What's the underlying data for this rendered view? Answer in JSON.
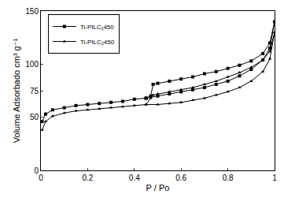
{
  "chart_data": {
    "type": "line",
    "x_label": "P / Po",
    "y_label": "Volume Adsorbado cm³ g⁻¹",
    "xlim": [
      0,
      1
    ],
    "ylim": [
      0,
      150
    ],
    "xticks": [
      0,
      0.2,
      0.4,
      0.6,
      0.8,
      1
    ],
    "yticks": [
      0,
      50,
      75,
      100,
      150
    ],
    "legend": "top-left",
    "grid": false,
    "series": [
      {
        "name": "Ti-PILC₁450",
        "color": "#000000",
        "marker": "square",
        "x": [
          0.005,
          0.02,
          0.05,
          0.1,
          0.15,
          0.2,
          0.25,
          0.3,
          0.35,
          0.4,
          0.45,
          0.5,
          0.55,
          0.6,
          0.65,
          0.7,
          0.75,
          0.8,
          0.85,
          0.9,
          0.95,
          0.98,
          1.0,
          0.98,
          0.95,
          0.9,
          0.85,
          0.8,
          0.75,
          0.7,
          0.65,
          0.6,
          0.55,
          0.5,
          0.48,
          0.47,
          0.45
        ],
        "values": [
          46,
          53,
          57,
          59,
          61,
          62,
          63,
          64,
          65,
          67,
          68,
          70,
          72,
          74,
          76,
          78,
          81,
          84,
          89,
          95,
          104,
          115,
          140,
          120,
          110,
          103,
          99,
          96,
          93,
          91,
          88,
          86,
          84,
          82,
          81,
          70,
          68
        ]
      },
      {
        "name": "Ti-PILC₂450",
        "color": "#000000",
        "marker": "triangle",
        "x": [
          0.005,
          0.02,
          0.05,
          0.1,
          0.15,
          0.2,
          0.25,
          0.3,
          0.35,
          0.4,
          0.45,
          0.5,
          0.55,
          0.6,
          0.65,
          0.7,
          0.75,
          0.8,
          0.85,
          0.9,
          0.95,
          0.98,
          1.0,
          0.98,
          0.95,
          0.9,
          0.85,
          0.8,
          0.75,
          0.7,
          0.65,
          0.6,
          0.55,
          0.5,
          0.48,
          0.47,
          0.45
        ],
        "values": [
          38,
          46,
          51,
          54,
          56,
          57,
          58,
          59,
          60,
          61,
          62,
          62,
          63,
          64,
          66,
          68,
          71,
          74,
          78,
          84,
          93,
          105,
          130,
          112,
          104,
          97,
          92,
          88,
          84,
          81,
          78,
          76,
          74,
          72,
          71,
          68,
          62
        ]
      }
    ]
  }
}
